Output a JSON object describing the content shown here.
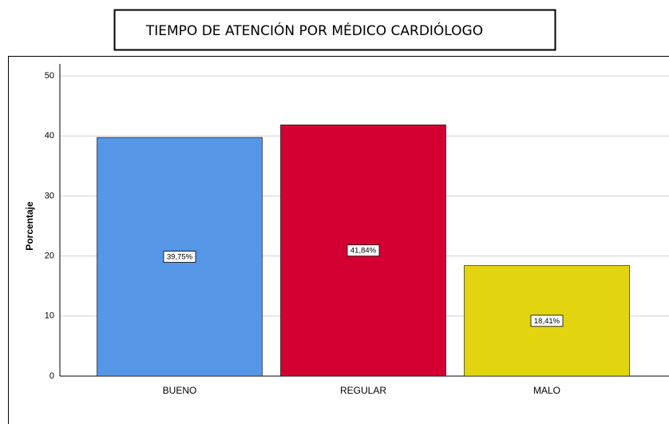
{
  "chart_data": {
    "type": "bar",
    "title": "TIEMPO DE ATENCIÓN POR MÉDICO CARDIÓLOGO",
    "y_label": "Porcentaje",
    "categories": [
      "BUENO",
      "REGULAR",
      "MALO"
    ],
    "values": [
      39.75,
      41.84,
      18.41
    ],
    "value_labels": [
      "39,75%",
      "41,84%",
      "18,41%"
    ],
    "colors": [
      "#5596e6",
      "#d50032",
      "#e2d40f"
    ],
    "ylim": [
      0,
      52
    ],
    "yticks": [
      0,
      10,
      20,
      30,
      40,
      50
    ],
    "grid": true
  }
}
